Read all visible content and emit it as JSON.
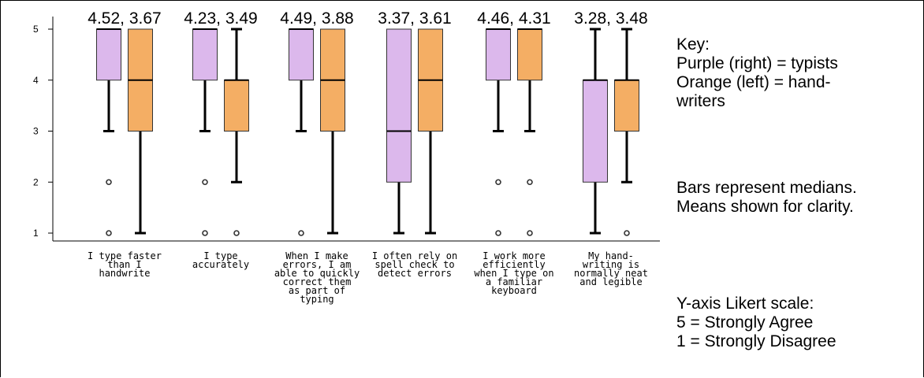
{
  "chart_data": {
    "type": "box",
    "y_axis": {
      "range": [
        1,
        5
      ],
      "ticks": [
        "5",
        "4",
        "3",
        "2",
        "1"
      ]
    },
    "categories": [
      "I type faster\nthan I\nhandwrite",
      "I type\naccurately",
      "When I make\nerrors, I am\nable to quickly\ncorrect them\nas part of\ntyping",
      "I often rely on\nspell check to\ndetect errors",
      "I work more\nefficiently\nwhen I type on\na familiar\nkeyboard",
      "My hand-\nwriting is\nnormally neat\nand legible"
    ],
    "mean_labels": [
      "4.52, 3.67",
      "4.23, 3.49",
      "4.49, 3.88",
      "3.37, 3.61",
      "4.46, 4.31",
      "3.28, 3.48"
    ],
    "series": [
      {
        "color": "#dcb8ec",
        "boxes": [
          {
            "whisker_low": 3,
            "q1": 4,
            "median": 5,
            "q3": 5,
            "whisker_high": 5,
            "outliers": [
              2,
              1
            ]
          },
          {
            "whisker_low": 3,
            "q1": 4,
            "median": 5,
            "q3": 5,
            "whisker_high": 5,
            "outliers": [
              2,
              1
            ]
          },
          {
            "whisker_low": 3,
            "q1": 4,
            "median": 5,
            "q3": 5,
            "whisker_high": 5,
            "outliers": [
              1
            ]
          },
          {
            "whisker_low": 1,
            "q1": 2,
            "median": 3,
            "q3": 5,
            "whisker_high": 5,
            "outliers": []
          },
          {
            "whisker_low": 3,
            "q1": 4,
            "median": 5,
            "q3": 5,
            "whisker_high": 5,
            "outliers": [
              2,
              1
            ]
          },
          {
            "whisker_low": 1,
            "q1": 2,
            "median": 4,
            "q3": 4,
            "whisker_high": 5,
            "outliers": []
          }
        ]
      },
      {
        "color": "#f4ae64",
        "boxes": [
          {
            "whisker_low": 1,
            "q1": 3,
            "median": 4,
            "q3": 5,
            "whisker_high": 5,
            "outliers": []
          },
          {
            "whisker_low": 2,
            "q1": 3,
            "median": 4,
            "q3": 4,
            "whisker_high": 5,
            "outliers": [
              1
            ]
          },
          {
            "whisker_low": 1,
            "q1": 3,
            "median": 4,
            "q3": 5,
            "whisker_high": 5,
            "outliers": []
          },
          {
            "whisker_low": 1,
            "q1": 3,
            "median": 4,
            "q3": 5,
            "whisker_high": 5,
            "outliers": []
          },
          {
            "whisker_low": 3,
            "q1": 4,
            "median": 5,
            "q3": 5,
            "whisker_high": 5,
            "outliers": [
              2,
              1
            ]
          },
          {
            "whisker_low": 2,
            "q1": 3,
            "median": 4,
            "q3": 4,
            "whisker_high": 5,
            "outliers": [
              1
            ]
          }
        ]
      }
    ],
    "grid": false
  },
  "key": {
    "heading": "Key:",
    "line1": "Purple (right) = typists",
    "line2": "Orange (left) = hand-\nwriters",
    "medians_note": "Bars represent medians.",
    "means_note": "Means shown for clarity.",
    "scale_title": "Y-axis Likert scale:",
    "scale_high": "5 = Strongly Agree",
    "scale_low": "1 = Strongly Disagree"
  }
}
